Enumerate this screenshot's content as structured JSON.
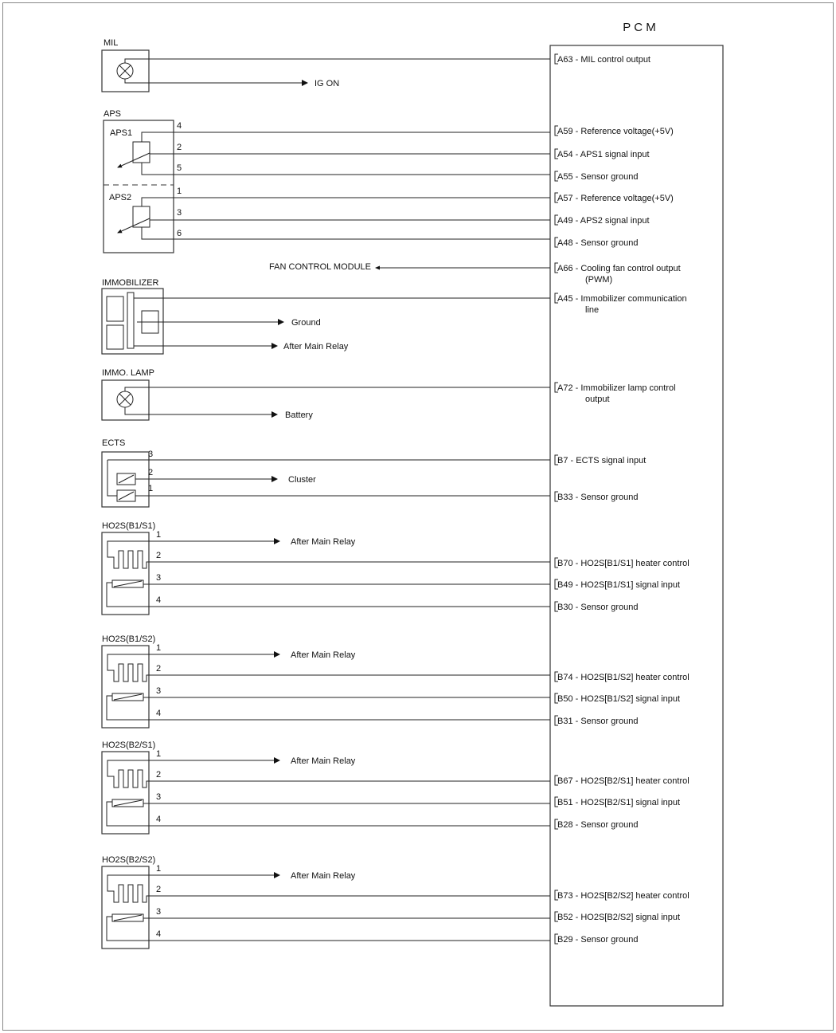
{
  "pcm": {
    "title": "P C M",
    "terminals": [
      {
        "id": "A63",
        "lines": [
          "A63 - MIL control output"
        ]
      },
      {
        "id": "A59",
        "lines": [
          "A59 - Reference voltage(+5V)"
        ]
      },
      {
        "id": "A54",
        "lines": [
          "A54 - APS1 signal input"
        ]
      },
      {
        "id": "A55",
        "lines": [
          "A55 - Sensor ground"
        ]
      },
      {
        "id": "A57",
        "lines": [
          "A57 - Reference voltage(+5V)"
        ]
      },
      {
        "id": "A49",
        "lines": [
          "A49 - APS2 signal input"
        ]
      },
      {
        "id": "A48",
        "lines": [
          "A48 - Sensor ground"
        ]
      },
      {
        "id": "A66",
        "lines": [
          "A66 - Cooling fan control output",
          "(PWM)"
        ]
      },
      {
        "id": "A45",
        "lines": [
          "A45 - Immobilizer communication",
          "line"
        ]
      },
      {
        "id": "A72",
        "lines": [
          "A72 - Immobilizer lamp control",
          "output"
        ]
      },
      {
        "id": "B7",
        "lines": [
          "B7 - ECTS signal input"
        ]
      },
      {
        "id": "B33",
        "lines": [
          "B33 - Sensor ground"
        ]
      },
      {
        "id": "B70",
        "lines": [
          "B70 - HO2S[B1/S1] heater control"
        ]
      },
      {
        "id": "B49",
        "lines": [
          "B49 - HO2S[B1/S1] signal input"
        ]
      },
      {
        "id": "B30",
        "lines": [
          "B30 - Sensor ground"
        ]
      },
      {
        "id": "B74",
        "lines": [
          "B74 - HO2S[B1/S2] heater control"
        ]
      },
      {
        "id": "B50",
        "lines": [
          "B50 - HO2S[B1/S2] signal input"
        ]
      },
      {
        "id": "B31",
        "lines": [
          "B31 - Sensor ground"
        ]
      },
      {
        "id": "B67",
        "lines": [
          "B67 - HO2S[B2/S1] heater control"
        ]
      },
      {
        "id": "B51",
        "lines": [
          "B51 - HO2S[B2/S1] signal input"
        ]
      },
      {
        "id": "B28",
        "lines": [
          "B28 - Sensor ground"
        ]
      },
      {
        "id": "B73",
        "lines": [
          "B73 - HO2S[B2/S2] heater control"
        ]
      },
      {
        "id": "B52",
        "lines": [
          "B52 - HO2S[B2/S2] signal input"
        ]
      },
      {
        "id": "B29",
        "lines": [
          "B29 - Sensor ground"
        ]
      }
    ]
  },
  "mil": {
    "label": "MIL",
    "external": "IG ON"
  },
  "aps": {
    "label": "APS",
    "aps1": "APS1",
    "aps2": "APS2",
    "pins": [
      "4",
      "2",
      "5",
      "1",
      "3",
      "6"
    ]
  },
  "fan": {
    "label": "FAN CONTROL MODULE"
  },
  "immobilizer": {
    "label": "IMMOBILIZER",
    "ground": "Ground",
    "relay": "After Main Relay"
  },
  "immo_lamp": {
    "label": "IMMO. LAMP",
    "external": "Battery"
  },
  "ects": {
    "label": "ECTS",
    "pins": [
      "3",
      "2",
      "1"
    ],
    "external": "Cluster"
  },
  "ho2s": [
    {
      "label": "HO2S(B1/S1)",
      "pins": [
        "1",
        "2",
        "3",
        "4"
      ],
      "relay": "After Main Relay"
    },
    {
      "label": "HO2S(B1/S2)",
      "pins": [
        "1",
        "2",
        "3",
        "4"
      ],
      "relay": "After Main Relay"
    },
    {
      "label": "HO2S(B2/S1)",
      "pins": [
        "1",
        "2",
        "3",
        "4"
      ],
      "relay": "After Main Relay"
    },
    {
      "label": "HO2S(B2/S2)",
      "pins": [
        "1",
        "2",
        "3",
        "4"
      ],
      "relay": "After Main Relay"
    }
  ]
}
